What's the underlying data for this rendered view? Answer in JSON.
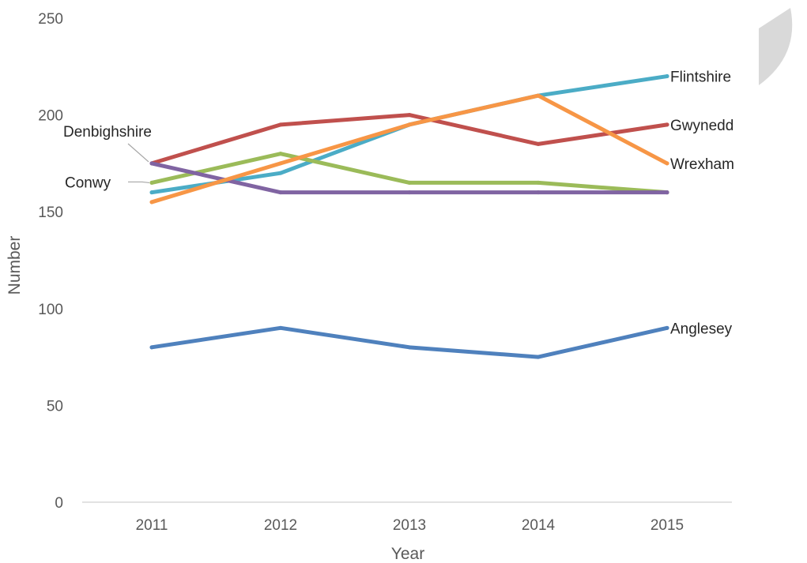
{
  "chart_data": {
    "type": "line",
    "title": "",
    "xlabel": "Year",
    "ylabel": "Number",
    "categories": [
      "2011",
      "2012",
      "2013",
      "2014",
      "2015"
    ],
    "ylim": [
      0,
      250
    ],
    "yticks": [
      "0",
      "50",
      "100",
      "150",
      "200",
      "250"
    ],
    "grid": false,
    "legend": "none (series labelled directly)",
    "series": [
      {
        "name": "Anglesey",
        "color": "#4F81BD",
        "values": [
          80,
          90,
          80,
          75,
          90
        ]
      },
      {
        "name": "Conwy",
        "color": "#9BBB59",
        "values": [
          165,
          180,
          165,
          165,
          160
        ]
      },
      {
        "name": "Denbighshire",
        "color": "#8064A2",
        "values": [
          175,
          160,
          160,
          160,
          160
        ]
      },
      {
        "name": "Flintshire",
        "color": "#4BACC6",
        "values": [
          160,
          170,
          195,
          210,
          220
        ]
      },
      {
        "name": "Gwynedd",
        "color": "#C0504D",
        "values": [
          175,
          195,
          200,
          185,
          195
        ]
      },
      {
        "name": "Wrexham",
        "color": "#F79646",
        "values": [
          155,
          175,
          195,
          210,
          175
        ]
      }
    ]
  }
}
